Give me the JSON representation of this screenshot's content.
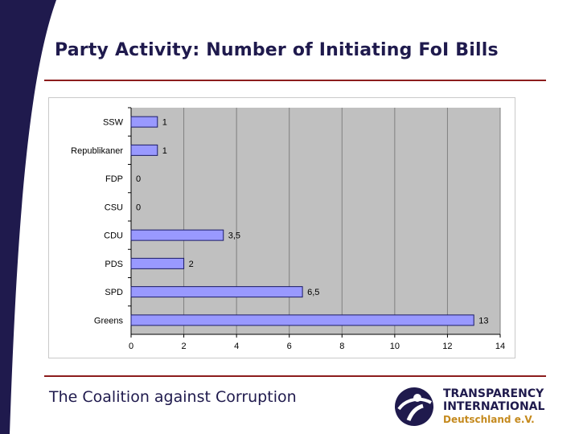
{
  "slide": {
    "title": "Party Activity: Number of Initiating FoI Bills",
    "footer": "The Coalition against Corruption"
  },
  "logo": {
    "line1": "TRANSPARENCY",
    "line2": "INTERNATIONAL",
    "line3": "Deutschland e.V."
  },
  "colors": {
    "title": "#1f1a4d",
    "rule": "#8c1c1c",
    "bar_fill": "#9999ff",
    "bar_stroke": "#1a1a66",
    "plot_bg": "#c0c0c0",
    "logo_accent": "#c58a1e",
    "swoosh": "#1f1a4d"
  },
  "chart_data": {
    "type": "bar",
    "orientation": "horizontal",
    "categories": [
      "SSW",
      "Republikaner",
      "FDP",
      "CSU",
      "CDU",
      "PDS",
      "SPD",
      "Greens"
    ],
    "values": [
      1,
      1,
      0,
      0,
      3.5,
      2,
      6.5,
      13
    ],
    "value_labels": [
      "1",
      "1",
      "0",
      "0",
      "3,5",
      "2",
      "6,5",
      "13"
    ],
    "xlim": [
      0,
      14
    ],
    "xticks": [
      0,
      2,
      4,
      6,
      8,
      10,
      12,
      14
    ],
    "grid": true
  }
}
